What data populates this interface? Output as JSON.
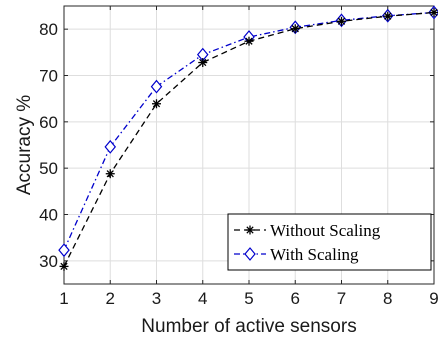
{
  "chart_data": {
    "type": "line",
    "xlabel": "Number of active sensors",
    "ylabel": "Accuracy %",
    "x": [
      1,
      2,
      3,
      4,
      5,
      6,
      7,
      8,
      9
    ],
    "xlim": [
      1,
      9
    ],
    "ylim": [
      25,
      85
    ],
    "xticks": [
      "1",
      "2",
      "3",
      "4",
      "5",
      "6",
      "7",
      "8",
      "9"
    ],
    "yticks": [
      "30",
      "40",
      "50",
      "60",
      "70",
      "80"
    ],
    "grid": true,
    "legend_position": "bottom-right",
    "series": [
      {
        "name": "Without Scaling",
        "values": [
          28.8,
          48.8,
          63.9,
          72.8,
          77.4,
          80.1,
          81.7,
          82.8,
          83.6
        ],
        "color": "#000000",
        "marker": "asterisk",
        "line_style": "dashed"
      },
      {
        "name": "With Scaling",
        "values": [
          32.3,
          54.6,
          67.6,
          74.5,
          78.3,
          80.4,
          81.9,
          82.9,
          83.6
        ],
        "color": "#0000cc",
        "marker": "diamond",
        "line_style": "dash-dot"
      }
    ]
  }
}
